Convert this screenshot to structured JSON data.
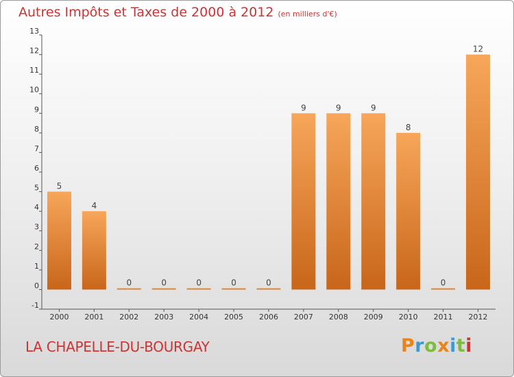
{
  "header": {
    "title": "Autres Impôts et Taxes de 2000 à 2012",
    "unit": "(en milliers d'€)"
  },
  "footer": {
    "commune": "LA CHAPELLE-DU-BOURGAY",
    "logo": "Proxiti"
  },
  "colors": {
    "title": "#cc3333",
    "bar_top": "#f7a65a",
    "bar_bottom": "#c8661a",
    "logo": [
      "#e8841a",
      "#3a9ad9",
      "#7cbd3a",
      "#e8841a",
      "#3a9ad9",
      "#7cbd3a",
      "#cc3333"
    ]
  },
  "chart_data": {
    "type": "bar",
    "categories": [
      "2000",
      "2001",
      "2002",
      "2003",
      "2004",
      "2005",
      "2006",
      "2007",
      "2008",
      "2009",
      "2010",
      "2011",
      "2012"
    ],
    "values": [
      5,
      4,
      0,
      0,
      0,
      0,
      0,
      9,
      9,
      9,
      8,
      0,
      12
    ],
    "data_labels": [
      "5",
      "4",
      "0",
      "0",
      "0",
      "0",
      "0",
      "9",
      "9",
      "9",
      "8",
      "0",
      "12"
    ],
    "title": "Autres Impôts et Taxes de 2000 à 2012",
    "xlabel": "",
    "ylabel": "",
    "ylim": [
      -1,
      13
    ],
    "yticks": [
      "-1",
      "0",
      "1",
      "2",
      "3",
      "4",
      "5",
      "6",
      "7",
      "8",
      "9",
      "10",
      "11",
      "12",
      "13"
    ],
    "grid": false,
    "legend": "none"
  }
}
